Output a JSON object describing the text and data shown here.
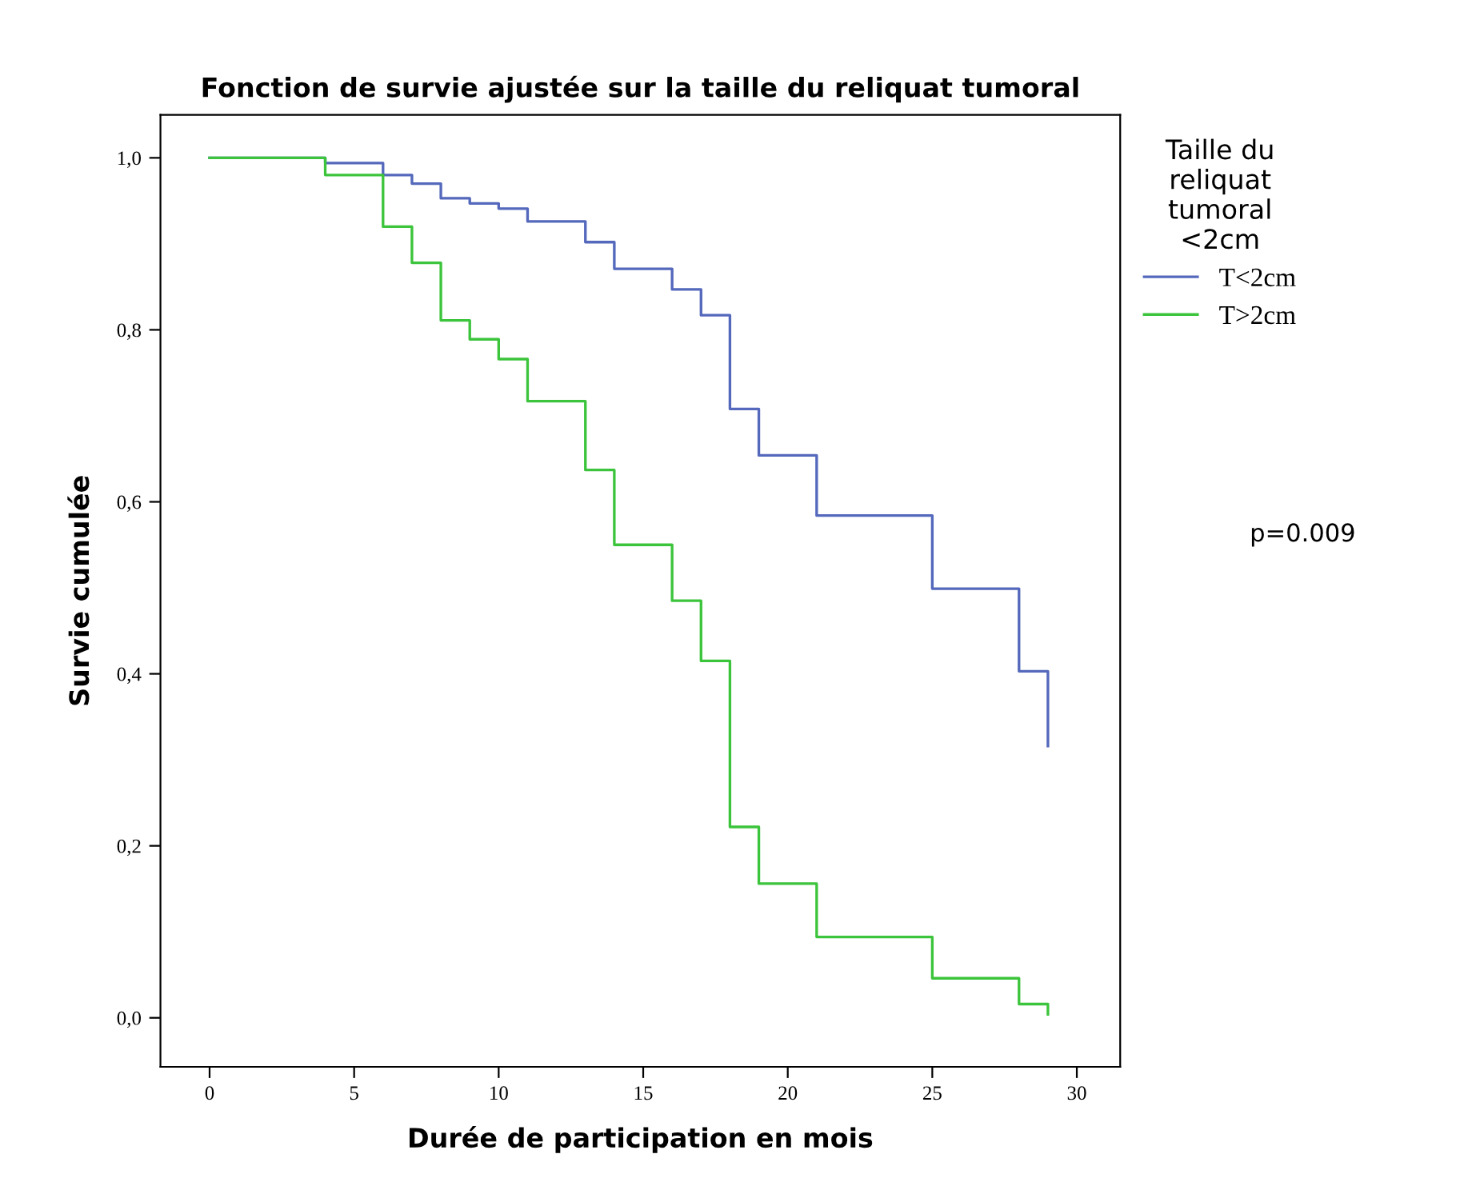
{
  "chart_data": {
    "type": "step",
    "title": "Fonction de survie ajustée sur la taille du reliquat tumoral",
    "xlabel": "Durée de participation en mois",
    "ylabel": "Survie cumulée",
    "legend_title": "Taille du\nreliquat\ntumoral\n<2cm",
    "legend": "right",
    "grid": false,
    "marker": "none",
    "line_style": "solid",
    "xlim": [
      -1.7,
      31.5
    ],
    "ylim": [
      -0.057,
      1.05
    ],
    "xticks": [
      0,
      5,
      10,
      15,
      20,
      25,
      30
    ],
    "yticks": [
      {
        "value": 0,
        "label": "0,0"
      },
      {
        "value": 0.2,
        "label": "0,2"
      },
      {
        "value": 0.4,
        "label": "0,4"
      },
      {
        "value": 0.6,
        "label": "0,6"
      },
      {
        "value": 0.8,
        "label": "0,8"
      },
      {
        "value": 1,
        "label": "1,0"
      }
    ],
    "series": [
      {
        "name": "T<2cm",
        "color": "#5468bc",
        "x": [
          0,
          4,
          6,
          7,
          8,
          9,
          10,
          11,
          13,
          14,
          16,
          17,
          18,
          19,
          21,
          25,
          28,
          29
        ],
        "values": [
          1,
          0.994,
          0.98,
          0.97,
          0.953,
          0.947,
          0.941,
          0.926,
          0.902,
          0.871,
          0.847,
          0.817,
          0.708,
          0.654,
          0.584,
          0.499,
          0.403,
          0.316
        ]
      },
      {
        "name": "T>2cm",
        "color": "#3cc43c",
        "x": [
          0,
          4,
          6,
          7,
          8,
          9,
          10,
          11,
          13,
          14,
          16,
          17,
          18,
          19,
          21,
          25,
          28,
          29
        ],
        "values": [
          1,
          0.98,
          0.92,
          0.878,
          0.811,
          0.789,
          0.766,
          0.717,
          0.637,
          0.55,
          0.485,
          0.415,
          0.222,
          0.156,
          0.094,
          0.046,
          0.016,
          0.004
        ]
      }
    ],
    "annotations": [
      "p=0.009"
    ]
  }
}
